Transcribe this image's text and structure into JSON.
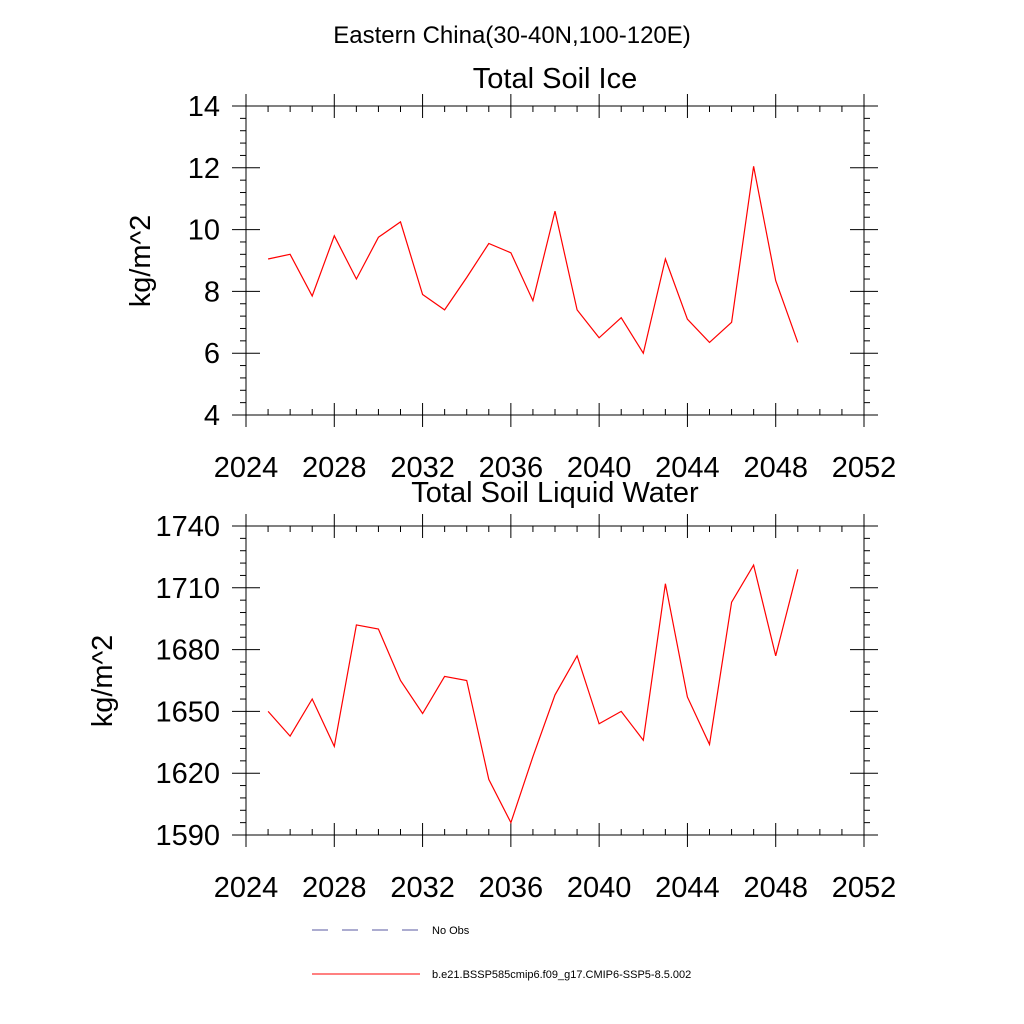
{
  "figure": {
    "title": "Eastern China(30-40N,100-120E)"
  },
  "chart_data": [
    {
      "type": "line",
      "title": "Total Soil Ice",
      "xlabel": "",
      "ylabel": "kg/m^2",
      "xlim": [
        2024,
        2052
      ],
      "ylim": [
        4,
        14
      ],
      "xticks": [
        2024,
        2028,
        2032,
        2036,
        2040,
        2044,
        2048,
        2052
      ],
      "yticks": [
        4,
        6,
        8,
        10,
        12,
        14
      ],
      "grid": false,
      "x": [
        2025,
        2026,
        2027,
        2028,
        2029,
        2030,
        2031,
        2032,
        2033,
        2034,
        2035,
        2036,
        2037,
        2038,
        2039,
        2040,
        2041,
        2042,
        2043,
        2044,
        2045,
        2046,
        2047,
        2048,
        2049
      ],
      "series": [
        {
          "name": "b.e21.BSSP585cmip6.f09_g17.CMIP6-SSP5-8.5.002",
          "color": "#ff0000",
          "values": [
            9.05,
            9.2,
            7.85,
            9.8,
            8.4,
            9.75,
            10.25,
            7.9,
            7.4,
            8.45,
            9.55,
            9.25,
            7.7,
            10.6,
            7.4,
            6.5,
            7.15,
            6.0,
            9.05,
            7.1,
            6.35,
            7.0,
            12.05,
            8.35,
            6.35
          ]
        }
      ]
    },
    {
      "type": "line",
      "title": "Total Soil Liquid Water",
      "xlabel": "",
      "ylabel": "kg/m^2",
      "xlim": [
        2024,
        2052
      ],
      "ylim": [
        1590,
        1740
      ],
      "xticks": [
        2024,
        2028,
        2032,
        2036,
        2040,
        2044,
        2048,
        2052
      ],
      "yticks": [
        1590,
        1620,
        1650,
        1680,
        1710,
        1740
      ],
      "grid": false,
      "x": [
        2025,
        2026,
        2027,
        2028,
        2029,
        2030,
        2031,
        2032,
        2033,
        2034,
        2035,
        2036,
        2037,
        2038,
        2039,
        2040,
        2041,
        2042,
        2043,
        2044,
        2045,
        2046,
        2047,
        2048,
        2049
      ],
      "series": [
        {
          "name": "b.e21.BSSP585cmip6.f09_g17.CMIP6-SSP5-8.5.002",
          "color": "#ff0000",
          "values": [
            1650,
            1638,
            1656,
            1633,
            1692,
            1690,
            1665,
            1649,
            1667,
            1665,
            1617,
            1596,
            1628,
            1658,
            1677,
            1644,
            1650,
            1636,
            1712,
            1657,
            1634,
            1703,
            1721,
            1677,
            1719
          ]
        }
      ]
    }
  ],
  "legend": {
    "placement": "bottom",
    "entries": [
      {
        "label": "No Obs",
        "color": "#5a5aa0",
        "style": "dashed"
      },
      {
        "label": "b.e21.BSSP585cmip6.f09_g17.CMIP6-SSP5-8.5.002",
        "color": "#ff0000",
        "style": "solid"
      }
    ]
  }
}
